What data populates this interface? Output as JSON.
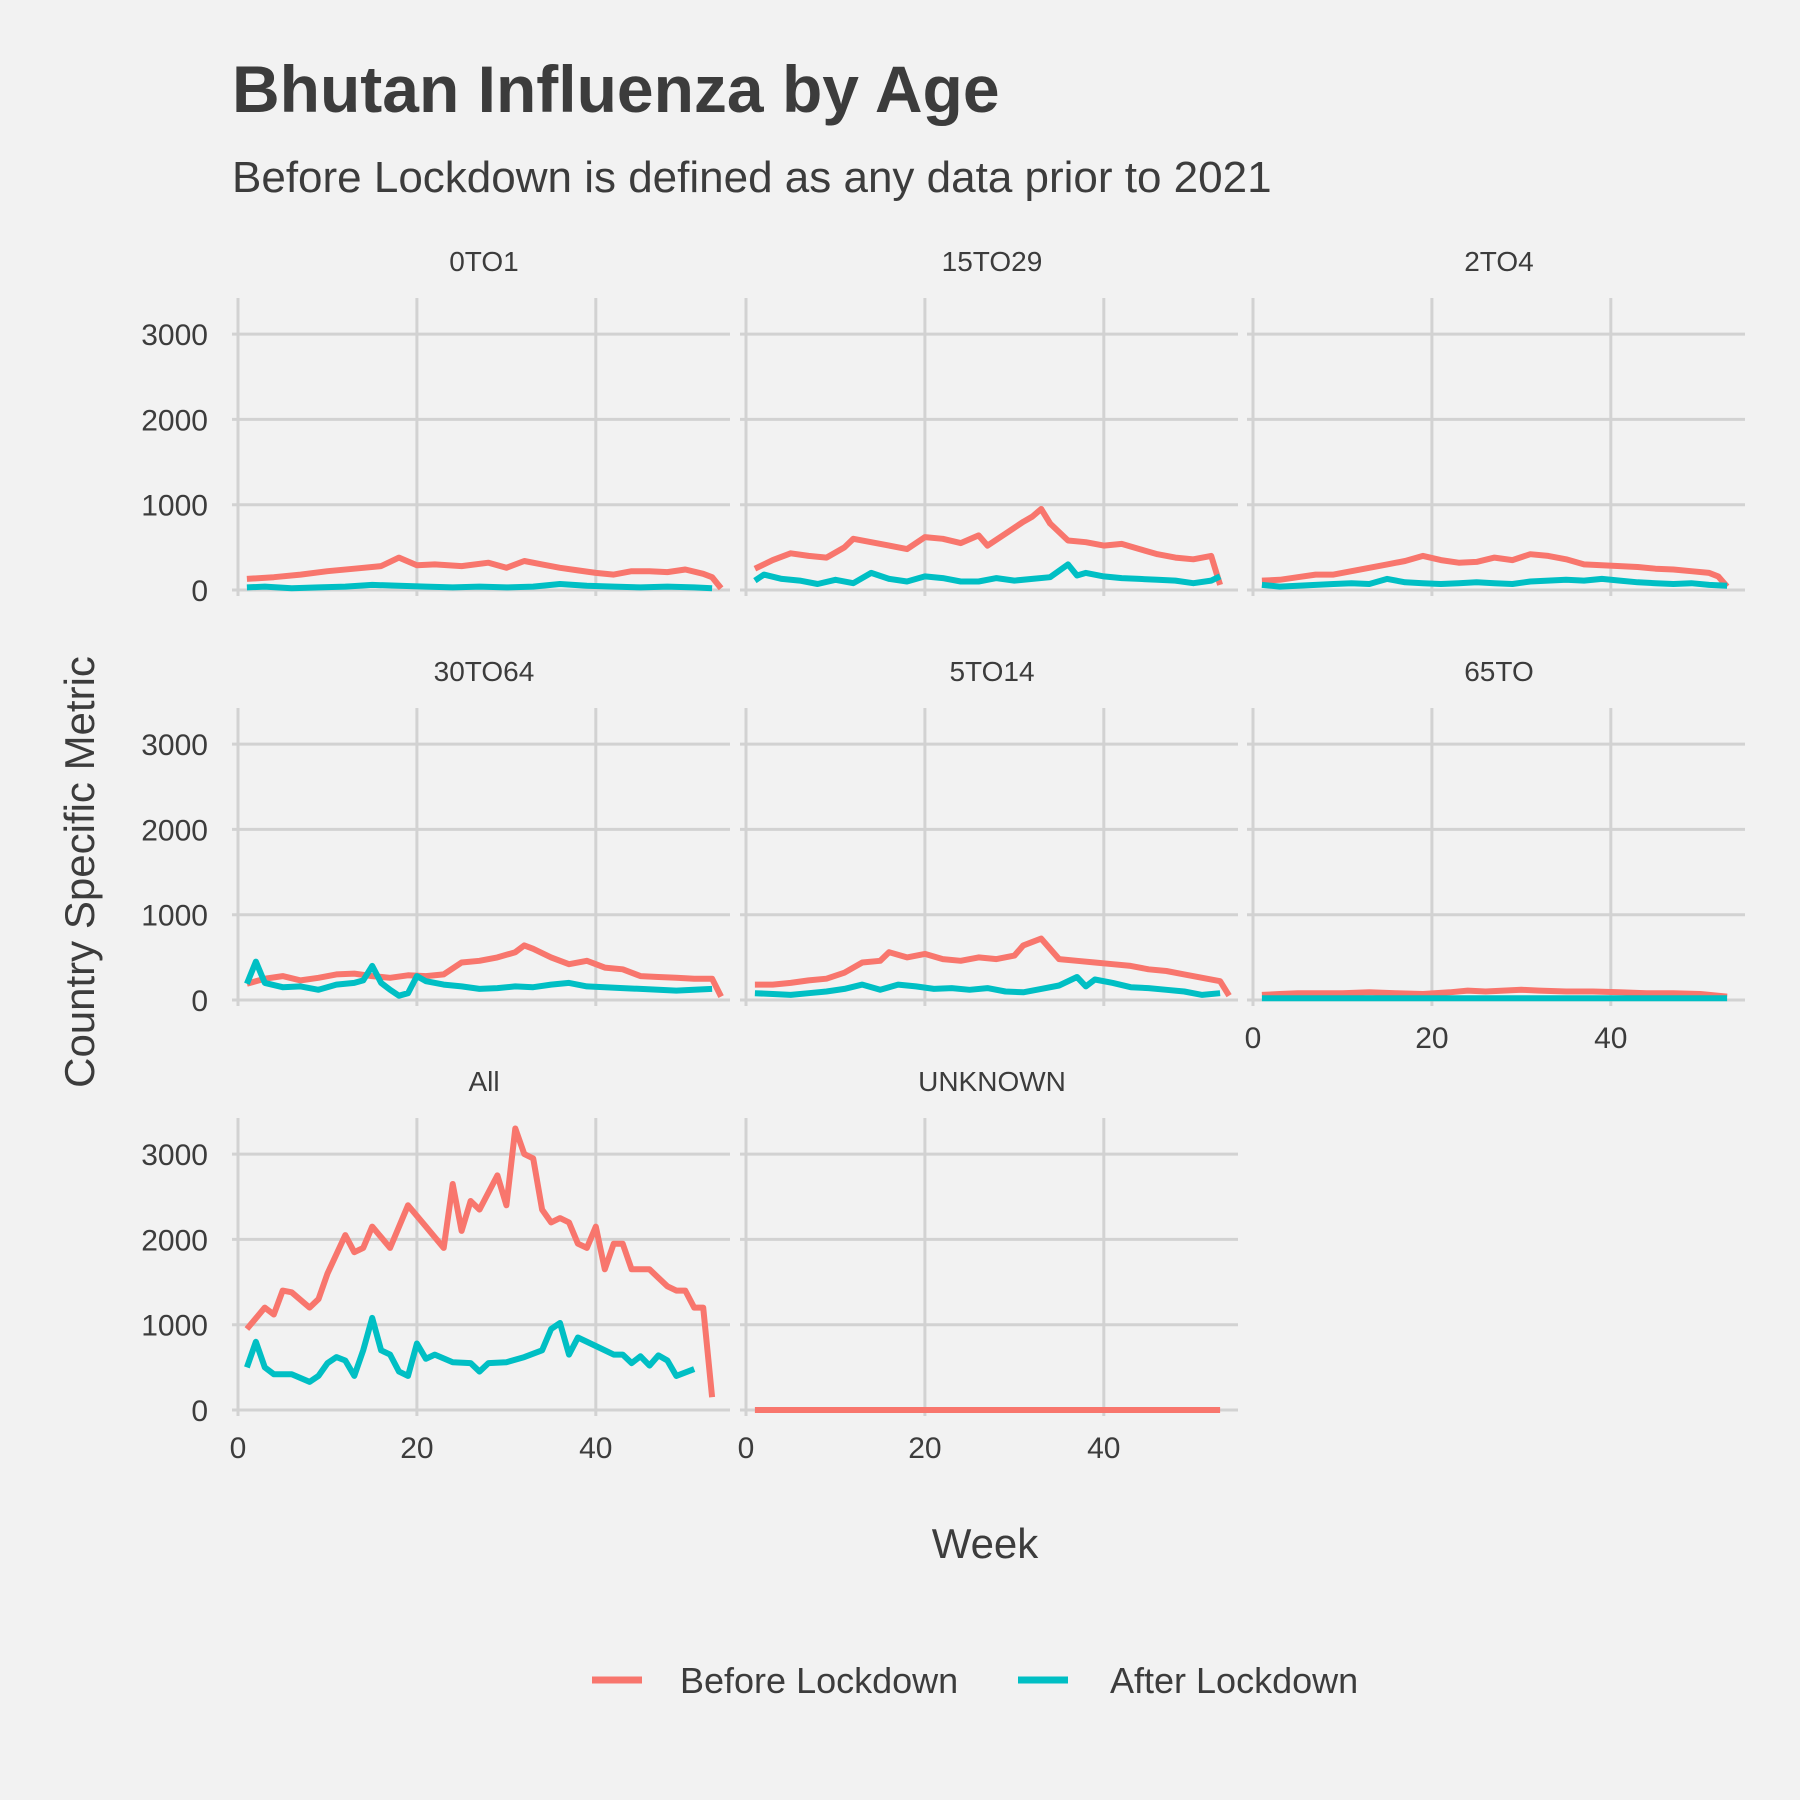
{
  "chart_data": {
    "type": "line",
    "title": "Bhutan Influenza by Age",
    "subtitle": "Before Lockdown is defined as any data prior to 2021",
    "xlabel": "Week",
    "ylabel": "Country Specific Metric",
    "xlim": [
      0,
      55
    ],
    "ylim": [
      0,
      3400
    ],
    "x_ticks": [
      0,
      20,
      40
    ],
    "y_ticks": [
      0,
      1000,
      2000,
      3000
    ],
    "grid": true,
    "legend_position": "bottom",
    "colors": {
      "Before Lockdown": "#f8766d",
      "After Lockdown": "#00bfc4"
    },
    "legend": [
      "Before Lockdown",
      "After Lockdown"
    ],
    "panels": [
      {
        "name": "0TO1",
        "series": [
          {
            "name": "Before Lockdown",
            "x": [
              1,
              4,
              7,
              10,
              13,
              16,
              18,
              20,
              22,
              25,
              28,
              30,
              32,
              34,
              36,
              38,
              40,
              42,
              44,
              46,
              48,
              50,
              52,
              53,
              54
            ],
            "y": [
              130,
              150,
              180,
              220,
              250,
              280,
              380,
              290,
              300,
              280,
              320,
              260,
              340,
              300,
              260,
              230,
              200,
              180,
              220,
              220,
              210,
              240,
              190,
              150,
              20
            ]
          },
          {
            "name": "After Lockdown",
            "x": [
              1,
              3,
              6,
              9,
              12,
              15,
              18,
              21,
              24,
              27,
              30,
              33,
              36,
              39,
              42,
              45,
              48,
              51,
              53
            ],
            "y": [
              30,
              40,
              20,
              30,
              40,
              60,
              50,
              40,
              30,
              40,
              30,
              40,
              70,
              50,
              40,
              30,
              40,
              30,
              20
            ]
          }
        ]
      },
      {
        "name": "15TO29",
        "series": [
          {
            "name": "Before Lockdown",
            "x": [
              1,
              3,
              5,
              7,
              9,
              11,
              12,
              14,
              16,
              18,
              20,
              22,
              24,
              26,
              27,
              29,
              31,
              32,
              33,
              34,
              36,
              38,
              40,
              42,
              44,
              46,
              48,
              50,
              52,
              53
            ],
            "y": [
              250,
              350,
              430,
              400,
              380,
              500,
              600,
              560,
              520,
              480,
              620,
              600,
              550,
              640,
              520,
              660,
              800,
              860,
              950,
              780,
              580,
              560,
              520,
              540,
              480,
              420,
              380,
              360,
              400,
              60
            ]
          },
          {
            "name": "After Lockdown",
            "x": [
              1,
              2,
              4,
              6,
              8,
              10,
              12,
              14,
              16,
              18,
              20,
              22,
              24,
              26,
              28,
              30,
              32,
              34,
              36,
              37,
              38,
              40,
              42,
              44,
              46,
              48,
              50,
              52,
              53
            ],
            "y": [
              110,
              180,
              130,
              110,
              70,
              120,
              80,
              200,
              130,
              100,
              160,
              140,
              100,
              100,
              140,
              110,
              130,
              150,
              300,
              170,
              200,
              160,
              140,
              130,
              120,
              110,
              80,
              110,
              160
            ]
          }
        ]
      },
      {
        "name": "2TO4",
        "series": [
          {
            "name": "Before Lockdown",
            "x": [
              1,
              3,
              5,
              7,
              9,
              11,
              13,
              15,
              17,
              19,
              21,
              23,
              25,
              27,
              29,
              31,
              33,
              35,
              37,
              39,
              41,
              43,
              45,
              47,
              49,
              51,
              52,
              53
            ],
            "y": [
              110,
              120,
              150,
              180,
              180,
              220,
              260,
              300,
              340,
              400,
              350,
              320,
              330,
              380,
              350,
              420,
              400,
              360,
              300,
              290,
              280,
              270,
              250,
              240,
              220,
              200,
              160,
              40
            ]
          },
          {
            "name": "After Lockdown",
            "x": [
              1,
              3,
              5,
              7,
              9,
              11,
              13,
              15,
              17,
              19,
              21,
              23,
              25,
              27,
              29,
              31,
              33,
              35,
              37,
              39,
              41,
              43,
              45,
              47,
              49,
              51,
              53
            ],
            "y": [
              60,
              40,
              50,
              60,
              70,
              80,
              70,
              130,
              90,
              80,
              70,
              80,
              90,
              80,
              70,
              100,
              110,
              120,
              110,
              130,
              110,
              90,
              80,
              70,
              80,
              60,
              50
            ]
          }
        ]
      },
      {
        "name": "30TO64",
        "series": [
          {
            "name": "Before Lockdown",
            "x": [
              1,
              3,
              5,
              7,
              9,
              11,
              13,
              15,
              17,
              19,
              21,
              23,
              25,
              27,
              29,
              31,
              32,
              33,
              35,
              37,
              39,
              41,
              43,
              45,
              47,
              49,
              51,
              53,
              54
            ],
            "y": [
              190,
              250,
              280,
              230,
              260,
              300,
              310,
              280,
              260,
              290,
              280,
              300,
              440,
              460,
              500,
              560,
              640,
              600,
              500,
              420,
              460,
              380,
              360,
              280,
              270,
              260,
              250,
              250,
              40
            ]
          },
          {
            "name": "After Lockdown",
            "x": [
              1,
              2,
              3,
              5,
              7,
              9,
              11,
              13,
              14,
              15,
              16,
              17,
              18,
              19,
              20,
              21,
              23,
              25,
              27,
              29,
              31,
              33,
              35,
              37,
              39,
              41,
              43,
              45,
              47,
              49,
              51,
              53
            ],
            "y": [
              190,
              450,
              200,
              150,
              160,
              120,
              180,
              200,
              230,
              400,
              200,
              120,
              50,
              80,
              280,
              220,
              180,
              160,
              130,
              140,
              160,
              150,
              180,
              200,
              160,
              150,
              140,
              130,
              120,
              110,
              120,
              130
            ]
          }
        ]
      },
      {
        "name": "5TO14",
        "series": [
          {
            "name": "Before Lockdown",
            "x": [
              1,
              3,
              5,
              7,
              9,
              11,
              13,
              15,
              16,
              18,
              20,
              22,
              24,
              26,
              28,
              30,
              31,
              33,
              35,
              37,
              39,
              41,
              43,
              45,
              47,
              49,
              51,
              53,
              54
            ],
            "y": [
              180,
              180,
              200,
              230,
              250,
              320,
              440,
              460,
              560,
              500,
              540,
              480,
              460,
              500,
              480,
              520,
              640,
              720,
              480,
              460,
              440,
              420,
              400,
              360,
              340,
              300,
              260,
              220,
              50
            ]
          },
          {
            "name": "After Lockdown",
            "x": [
              1,
              3,
              5,
              7,
              9,
              11,
              13,
              15,
              17,
              19,
              21,
              23,
              25,
              27,
              29,
              31,
              33,
              35,
              37,
              38,
              39,
              41,
              43,
              45,
              47,
              49,
              51,
              53
            ],
            "y": [
              80,
              70,
              60,
              80,
              100,
              130,
              180,
              120,
              180,
              160,
              130,
              140,
              120,
              140,
              100,
              90,
              130,
              170,
              270,
              160,
              240,
              200,
              150,
              140,
              120,
              100,
              60,
              80
            ]
          }
        ]
      },
      {
        "name": "65TO",
        "series": [
          {
            "name": "Before Lockdown",
            "x": [
              1,
              3,
              5,
              7,
              10,
              13,
              16,
              19,
              22,
              24,
              26,
              28,
              30,
              32,
              35,
              38,
              41,
              44,
              47,
              50,
              53
            ],
            "y": [
              60,
              70,
              80,
              80,
              80,
              90,
              80,
              70,
              90,
              110,
              100,
              110,
              120,
              110,
              100,
              100,
              90,
              80,
              80,
              70,
              40
            ]
          },
          {
            "name": "After Lockdown",
            "x": [
              1,
              4,
              7,
              10,
              13,
              16,
              19,
              22,
              25,
              28,
              31,
              34,
              37,
              40,
              43,
              46,
              49,
              53
            ],
            "y": [
              20,
              20,
              20,
              20,
              20,
              20,
              20,
              20,
              20,
              20,
              20,
              20,
              20,
              20,
              20,
              20,
              20,
              20
            ]
          }
        ]
      },
      {
        "name": "All",
        "series": [
          {
            "name": "Before Lockdown",
            "x": [
              1,
              3,
              4,
              5,
              6,
              8,
              9,
              10,
              12,
              13,
              14,
              15,
              17,
              19,
              21,
              23,
              24,
              25,
              26,
              27,
              29,
              30,
              31,
              32,
              33,
              34,
              35,
              36,
              37,
              38,
              39,
              40,
              41,
              42,
              43,
              44,
              45,
              46,
              47,
              48,
              49,
              50,
              51,
              52,
              53
            ],
            "y": [
              950,
              1200,
              1120,
              1400,
              1380,
              1200,
              1300,
              1600,
              2050,
              1850,
              1900,
              2150,
              1900,
              2400,
              2150,
              1900,
              2650,
              2100,
              2450,
              2350,
              2750,
              2400,
              3300,
              3000,
              2950,
              2350,
              2200,
              2250,
              2200,
              1950,
              1900,
              2150,
              1650,
              1950,
              1950,
              1650,
              1650,
              1650,
              1550,
              1450,
              1400,
              1400,
              1200,
              1200,
              150
            ]
          },
          {
            "name": "After Lockdown",
            "x": [
              1,
              2,
              3,
              4,
              6,
              8,
              9,
              10,
              11,
              12,
              13,
              14,
              15,
              16,
              17,
              18,
              19,
              20,
              21,
              22,
              24,
              26,
              27,
              28,
              30,
              32,
              34,
              35,
              36,
              37,
              38,
              40,
              42,
              43,
              44,
              45,
              46,
              47,
              48,
              49,
              51
            ],
            "y": [
              500,
              800,
              500,
              420,
              420,
              330,
              400,
              550,
              620,
              580,
              400,
              700,
              1080,
              700,
              650,
              450,
              400,
              780,
              600,
              650,
              560,
              550,
              450,
              550,
              560,
              620,
              700,
              950,
              1020,
              650,
              850,
              750,
              650,
              650,
              550,
              630,
              520,
              640,
              580,
              400,
              480
            ]
          }
        ]
      },
      {
        "name": "UNKNOWN",
        "series": [
          {
            "name": "Before Lockdown",
            "x": [
              1,
              53
            ],
            "y": [
              0,
              0
            ]
          }
        ]
      }
    ]
  }
}
